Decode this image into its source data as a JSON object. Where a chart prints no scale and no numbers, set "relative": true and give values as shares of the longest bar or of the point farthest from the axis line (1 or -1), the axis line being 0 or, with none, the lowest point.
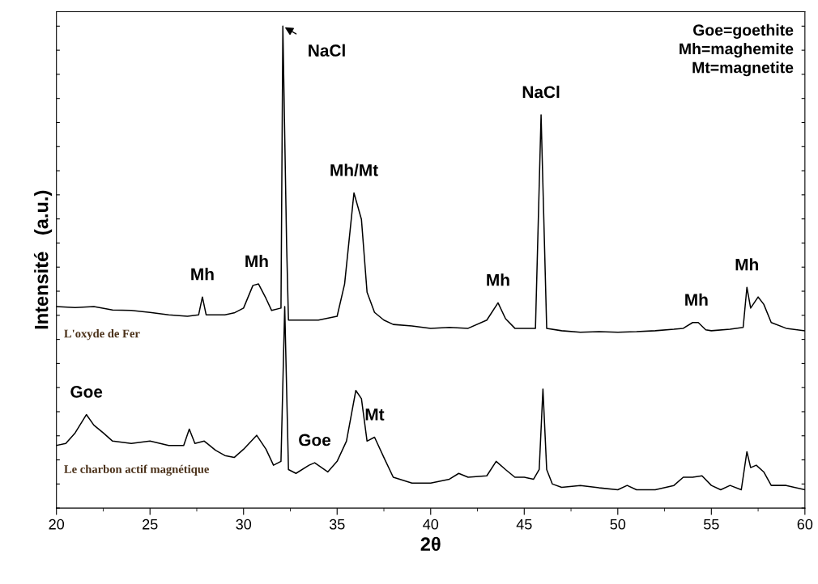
{
  "chart_data": {
    "type": "line",
    "relative": true,
    "xlabel": "2θ",
    "ylabel": "Intensité   (a.u.)",
    "xlim": [
      20,
      60
    ],
    "xticks": [
      20,
      25,
      30,
      35,
      40,
      45,
      50,
      55,
      60
    ],
    "tick_labels": "x",
    "legend": "left",
    "grid": false,
    "series": [
      {
        "name": "L'oxyde de Fer",
        "color": "#000000",
        "x": [
          20,
          21,
          22,
          23,
          24,
          25,
          26,
          27,
          27.6,
          27.8,
          28.0,
          28.5,
          29,
          29.5,
          30,
          30.5,
          30.8,
          31.2,
          31.5,
          32.0,
          32.1,
          32.3,
          32.4,
          33,
          34,
          35,
          35.4,
          35.9,
          36.3,
          36.6,
          37,
          37.5,
          38,
          39,
          40,
          41,
          42,
          43,
          43.6,
          44,
          44.5,
          45,
          45.6,
          45.9,
          46.2,
          47,
          48,
          49,
          50,
          51,
          52,
          53,
          53.5,
          54,
          54.3,
          54.7,
          55,
          56,
          56.7,
          56.9,
          57.1,
          57.5,
          57.8,
          58.2,
          59,
          60
        ],
        "values": [
          0.418,
          0.416,
          0.418,
          0.411,
          0.41,
          0.406,
          0.401,
          0.398,
          0.401,
          0.438,
          0.401,
          0.401,
          0.401,
          0.405,
          0.415,
          0.462,
          0.465,
          0.435,
          0.41,
          0.415,
          1.0,
          0.548,
          0.39,
          0.39,
          0.39,
          0.398,
          0.465,
          0.654,
          0.599,
          0.448,
          0.406,
          0.39,
          0.381,
          0.378,
          0.373,
          0.375,
          0.373,
          0.39,
          0.426,
          0.393,
          0.373,
          0.373,
          0.373,
          0.816,
          0.373,
          0.368,
          0.365,
          0.366,
          0.365,
          0.366,
          0.368,
          0.371,
          0.373,
          0.385,
          0.385,
          0.37,
          0.368,
          0.371,
          0.375,
          0.458,
          0.415,
          0.438,
          0.423,
          0.385,
          0.373,
          0.368
        ]
      },
      {
        "name": "Le charbon actif magnétique",
        "color": "#000000",
        "x": [
          20,
          20.5,
          21,
          21.6,
          22,
          22.5,
          23,
          24,
          25,
          26,
          26.8,
          27.1,
          27.4,
          27.9,
          28.5,
          29,
          29.5,
          30,
          30.7,
          31.2,
          31.6,
          32.0,
          32.2,
          32.4,
          32.8,
          33.5,
          33.8,
          34.5,
          35,
          35.5,
          36.0,
          36.3,
          36.6,
          37.0,
          37.5,
          38,
          39,
          40,
          41,
          41.5,
          42,
          43,
          43.5,
          44,
          44.5,
          45,
          45.5,
          45.8,
          46.0,
          46.2,
          46.5,
          47,
          48,
          49,
          50,
          50.5,
          51,
          52,
          53,
          53.5,
          54,
          54.5,
          55,
          55.5,
          56,
          56.6,
          56.9,
          57.1,
          57.4,
          57.8,
          58.2,
          59,
          60
        ],
        "values": [
          0.13,
          0.134,
          0.156,
          0.194,
          0.172,
          0.156,
          0.139,
          0.134,
          0.139,
          0.13,
          0.13,
          0.164,
          0.134,
          0.139,
          0.12,
          0.109,
          0.105,
          0.122,
          0.151,
          0.122,
          0.089,
          0.097,
          0.418,
          0.08,
          0.072,
          0.089,
          0.094,
          0.075,
          0.097,
          0.139,
          0.244,
          0.227,
          0.139,
          0.147,
          0.105,
          0.064,
          0.052,
          0.052,
          0.06,
          0.072,
          0.064,
          0.067,
          0.097,
          0.08,
          0.064,
          0.064,
          0.06,
          0.08,
          0.247,
          0.08,
          0.05,
          0.043,
          0.047,
          0.042,
          0.038,
          0.047,
          0.038,
          0.038,
          0.047,
          0.064,
          0.064,
          0.067,
          0.047,
          0.038,
          0.047,
          0.038,
          0.117,
          0.084,
          0.089,
          0.075,
          0.047,
          0.047,
          0.038
        ]
      }
    ],
    "annotations": [
      {
        "text": "Mh",
        "x": 27.8,
        "y": 0.438
      },
      {
        "text": "Mh",
        "x": 30.7,
        "y": 0.465
      },
      {
        "text": "NaCl",
        "x": 32.1,
        "y": 1.0
      },
      {
        "text": "Mh/Mt",
        "x": 35.9,
        "y": 0.654
      },
      {
        "text": "Mh",
        "x": 43.6,
        "y": 0.426
      },
      {
        "text": "NaCl",
        "x": 45.9,
        "y": 0.816
      },
      {
        "text": "Mh",
        "x": 54.2,
        "y": 0.385
      },
      {
        "text": "Mh",
        "x": 56.9,
        "y": 0.458
      },
      {
        "text": "Goe",
        "x": 21.6,
        "y": 0.194
      },
      {
        "text": "Goe",
        "x": 33.8,
        "y": 0.094
      },
      {
        "text": "Mt",
        "x": 37.0,
        "y": 0.147
      },
      "Goe=goethite\nMh=maghemite\nMt=magnetite"
    ]
  }
}
